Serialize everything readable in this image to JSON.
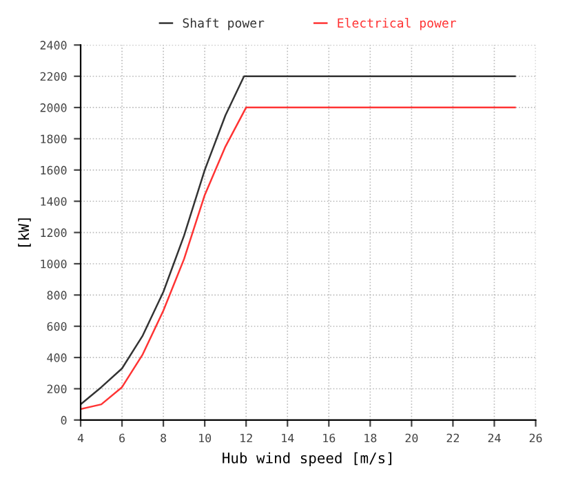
{
  "chart_data": {
    "type": "line",
    "xlabel": "Hub wind speed [m/s]",
    "ylabel": "[kW]",
    "xlim": [
      4,
      26
    ],
    "xticks": [
      4,
      6,
      8,
      10,
      12,
      14,
      16,
      18,
      20,
      22,
      24,
      26
    ],
    "ylim": [
      0,
      2400
    ],
    "yticks": [
      0,
      200,
      400,
      600,
      800,
      1000,
      1200,
      1400,
      1600,
      1800,
      2000,
      2200,
      2400
    ],
    "grid": true,
    "legend": "top",
    "line_style": "solid",
    "marker": "none",
    "series": [
      {
        "name": "Shaft power",
        "color": "#333333",
        "x": [
          4,
          5,
          6,
          7,
          8,
          9,
          10,
          11,
          11.9,
          25
        ],
        "values": [
          100,
          210,
          330,
          540,
          820,
          1180,
          1600,
          1950,
          2200,
          2200
        ]
      },
      {
        "name": "Electrical power",
        "color": "#ff3333",
        "x": [
          4,
          5,
          6,
          7,
          8,
          9,
          10,
          11,
          12,
          25
        ],
        "values": [
          70,
          100,
          210,
          420,
          700,
          1030,
          1440,
          1750,
          2000,
          2000
        ]
      }
    ]
  }
}
